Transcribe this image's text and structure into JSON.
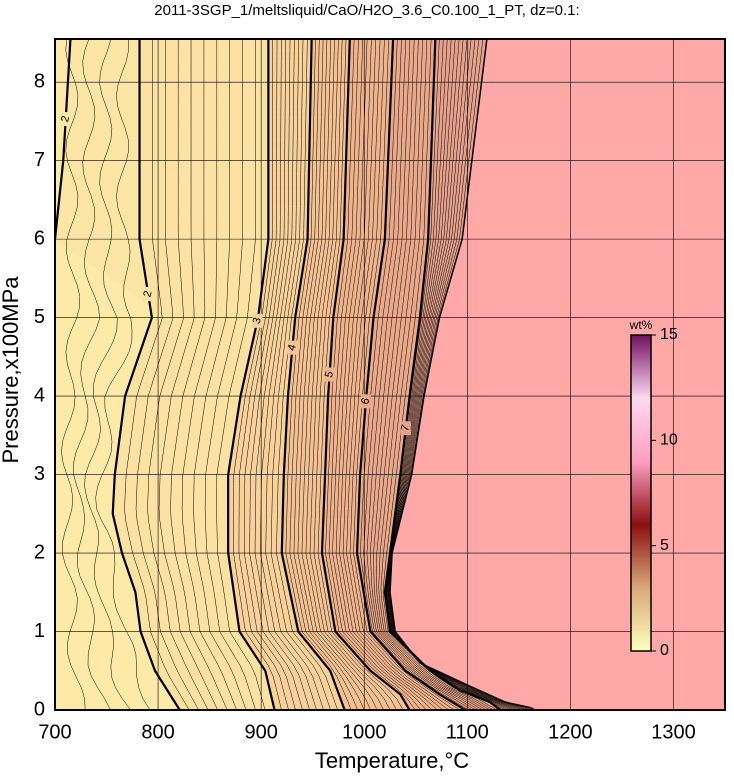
{
  "chart_data": {
    "type": "contour",
    "title": "2011-3SGP_1/meltsliquid/CaO/H2O_3.6_C0.100_1_PT, dz=0.1:",
    "xlabel": "Temperature,°C",
    "ylabel": "Pressure,x100MPa",
    "xlim": [
      700,
      1350
    ],
    "xticks": [
      700,
      800,
      900,
      1000,
      1100,
      1200,
      1300
    ],
    "ylim": [
      0,
      8.55
    ],
    "yticks": [
      0,
      1,
      2,
      3,
      4,
      5,
      6,
      7,
      8
    ],
    "grid": true,
    "background": "#fde9a8",
    "series": [
      {
        "name": "2",
        "color": "#fbe6a6",
        "x": [
          715,
          708,
          700
        ],
        "y": [
          8.55,
          7,
          6
        ]
      },
      {
        "name": "2",
        "color": "#fbe1a2",
        "x": [
          782,
          782,
          794,
          768,
          758,
          756,
          765,
          778,
          783,
          797,
          821
        ],
        "y": [
          8.55,
          6,
          5,
          4,
          3,
          2.5,
          2,
          1.5,
          1,
          0.5,
          0
        ]
      },
      {
        "name": "3",
        "color": "#f8d29a",
        "x": [
          907,
          907,
          897,
          880,
          868,
          868,
          879,
          904,
          913
        ],
        "y": [
          8.55,
          6,
          5,
          4,
          3,
          2,
          1,
          0.5,
          0
        ]
      },
      {
        "name": "4",
        "color": "#f4c293",
        "x": [
          949,
          945,
          933,
          926,
          922,
          920,
          936,
          967,
          981
        ],
        "y": [
          8.55,
          6,
          5,
          4,
          3,
          2,
          1,
          0.5,
          0
        ]
      },
      {
        "name": "5",
        "color": "#efb48d",
        "x": [
          986,
          980,
          970,
          965,
          962,
          959,
          972,
          1006,
          1035,
          1044
        ],
        "y": [
          8.55,
          6,
          5,
          4,
          3,
          2,
          1,
          0.5,
          0.2,
          0
        ]
      },
      {
        "name": "6",
        "color": "#eaa98a",
        "x": [
          1028,
          1020,
          1009,
          1002,
          996,
          993,
          1006,
          1040,
          1073,
          1098
        ],
        "y": [
          8.55,
          6,
          5,
          4,
          3,
          2,
          1,
          0.5,
          0.2,
          0
        ]
      },
      {
        "name": "7",
        "color": "#e6a28c",
        "x": [
          1069,
          1062,
          1054,
          1044,
          1035,
          1025,
          1020,
          1025,
          1064,
          1093,
          1122,
          1132
        ],
        "y": [
          8.55,
          6,
          5,
          4,
          3,
          2,
          1.5,
          1,
          0.5,
          0.25,
          0.1,
          0
        ]
      }
    ],
    "boundary": {
      "color": "#fea8a8",
      "x": [
        1119,
        1095,
        1073,
        1058,
        1046,
        1027,
        1025,
        1030,
        1054,
        1103,
        1137,
        1161,
        1166
      ],
      "y": [
        8.55,
        6,
        5,
        4,
        3,
        2,
        1.5,
        1,
        0.6,
        0.3,
        0.1,
        0.03,
        0
      ]
    },
    "colorbar": {
      "label": "wt%",
      "lim": [
        0,
        15
      ],
      "ticks": [
        0,
        5,
        10,
        15
      ],
      "colors": [
        "#ffffc0",
        "#d8a878",
        "#8b1010",
        "#ff9ec0",
        "#ffd8f0",
        "#701060"
      ]
    }
  }
}
